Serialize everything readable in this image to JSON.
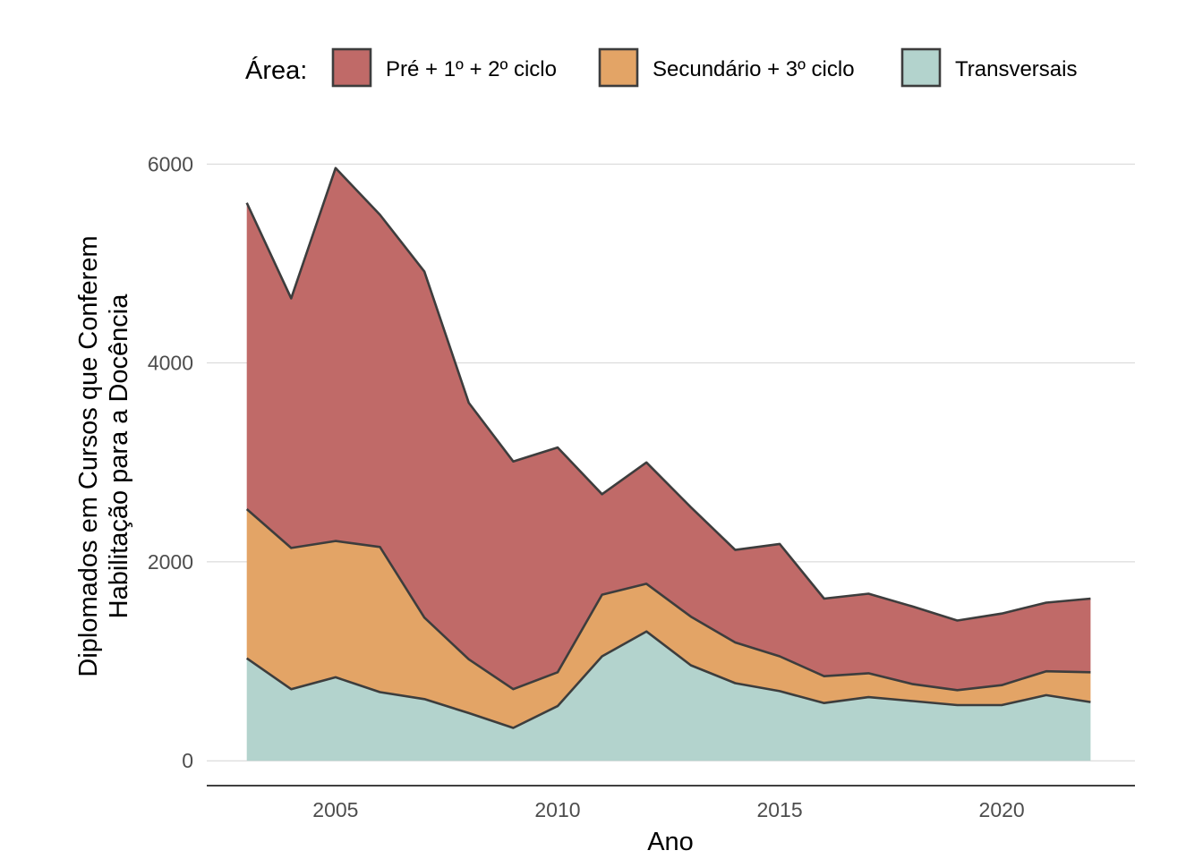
{
  "chart_data": {
    "type": "area",
    "stacked": true,
    "xlabel": "Ano",
    "ylabel_lines": [
      "Diplomados em Cursos que Conferem",
      "Habilitação para a Docência"
    ],
    "xlim": [
      2002.1,
      2023.0
    ],
    "ylim": [
      -250,
      6300
    ],
    "x_ticks": [
      2005,
      2010,
      2015,
      2020
    ],
    "y_ticks": [
      0,
      2000,
      4000,
      6000
    ],
    "grid": "horizontal major",
    "legend": {
      "title": "Área:",
      "position": "top"
    },
    "x": [
      2003,
      2004,
      2005,
      2006,
      2007,
      2008,
      2009,
      2010,
      2011,
      2012,
      2013,
      2014,
      2015,
      2016,
      2017,
      2018,
      2019,
      2020,
      2021,
      2022
    ],
    "series": [
      {
        "name": "Transversais",
        "color": "#b3d3cd",
        "values": [
          1030,
          720,
          840,
          690,
          620,
          480,
          330,
          550,
          1050,
          1300,
          960,
          780,
          700,
          580,
          640,
          600,
          560,
          560,
          660,
          590
        ]
      },
      {
        "name": "Secundário + 3º ciclo",
        "color": "#e3a466",
        "values": [
          1500,
          1420,
          1370,
          1460,
          820,
          540,
          390,
          340,
          620,
          480,
          490,
          410,
          350,
          270,
          240,
          170,
          150,
          200,
          240,
          300
        ]
      },
      {
        "name": "Pré + 1º + 2º ciclo",
        "color": "#c06a68",
        "values": [
          3080,
          2510,
          3750,
          3340,
          3480,
          2580,
          2290,
          2260,
          1010,
          1220,
          1100,
          930,
          1130,
          780,
          800,
          780,
          700,
          720,
          690,
          740
        ]
      }
    ],
    "legend_order": [
      "Pré + 1º + 2º ciclo",
      "Secundário + 3º ciclo",
      "Transversais"
    ],
    "outline_color": "#3d3d3d",
    "gridline_color": "#d4d4d4"
  }
}
